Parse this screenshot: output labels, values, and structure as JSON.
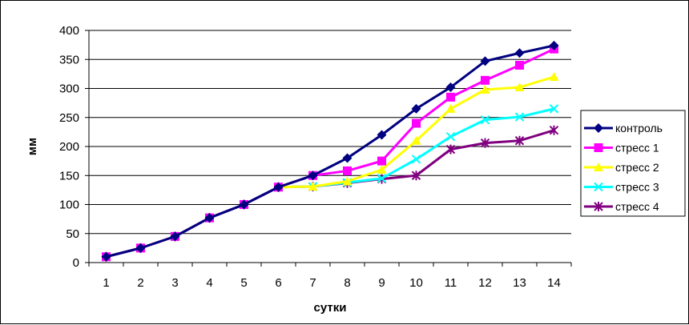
{
  "chart_data": {
    "type": "line",
    "title": "",
    "xlabel": "сутки",
    "ylabel": "мм",
    "categories": [
      "1",
      "2",
      "3",
      "4",
      "5",
      "6",
      "7",
      "8",
      "9",
      "10",
      "11",
      "12",
      "13",
      "14"
    ],
    "ylim": [
      0,
      400
    ],
    "yticks": [
      "0",
      "50",
      "100",
      "150",
      "200",
      "250",
      "300",
      "350",
      "400"
    ],
    "grid": "horizontal",
    "legend_position": "right",
    "series": [
      {
        "name": "контроль",
        "color": "#000080",
        "marker": "diamond",
        "values": [
          10,
          25,
          45,
          77,
          100,
          130,
          150,
          180,
          220,
          265,
          302,
          347,
          361,
          374
        ]
      },
      {
        "name": "стресс 1",
        "color": "#FF00FF",
        "marker": "square",
        "values": [
          10,
          25,
          45,
          77,
          100,
          130,
          150,
          158,
          175,
          240,
          285,
          314,
          340,
          368
        ]
      },
      {
        "name": "стресс 2",
        "color": "#FFFF00",
        "marker": "triangle",
        "values": [
          10,
          25,
          45,
          77,
          100,
          130,
          131,
          140,
          160,
          210,
          265,
          298,
          302,
          320
        ]
      },
      {
        "name": "стресс 3",
        "color": "#00FFFF",
        "marker": "x",
        "values": [
          10,
          25,
          45,
          77,
          100,
          130,
          131,
          138,
          145,
          178,
          217,
          246,
          251,
          265
        ]
      },
      {
        "name": "стресс 4",
        "color": "#800080",
        "marker": "asterisk",
        "values": [
          10,
          25,
          45,
          77,
          100,
          130,
          131,
          137,
          144,
          150,
          195,
          206,
          210,
          228
        ]
      }
    ]
  }
}
